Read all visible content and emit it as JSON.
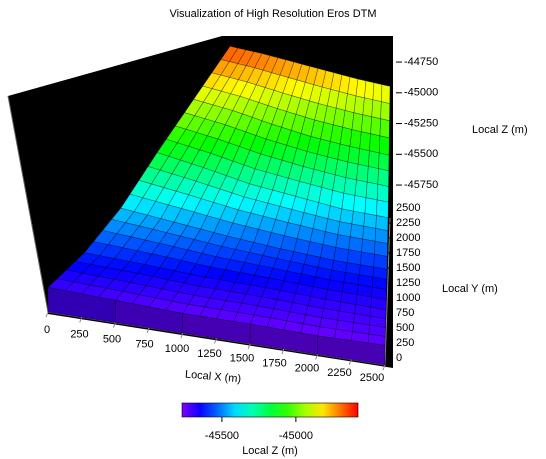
{
  "chart_data": {
    "type": "surface",
    "title": "Visualization of High Resolution Eros DTM",
    "x_label": "Local X (m)",
    "y_label": "Local Y (m)",
    "z_label": "Local Z (m)",
    "colorbar_label": "Local Z (m)",
    "x": [
      0,
      500,
      1000,
      1500,
      2000,
      2500
    ],
    "y": [
      0,
      500,
      1000,
      1500,
      2000,
      2500
    ],
    "z": [
      [
        -45700,
        -45720,
        -45740,
        -45740,
        -45750,
        -45740
      ],
      [
        -45600,
        -45620,
        -45650,
        -45660,
        -45680,
        -45690
      ],
      [
        -45420,
        -45470,
        -45520,
        -45560,
        -45590,
        -45600
      ],
      [
        -45150,
        -45220,
        -45300,
        -45350,
        -45400,
        -45420
      ],
      [
        -44900,
        -44950,
        -45020,
        -45080,
        -45120,
        -45150
      ],
      [
        -44650,
        -44680,
        -44720,
        -44760,
        -44800,
        -44830
      ]
    ],
    "xlim": [
      0,
      2500
    ],
    "ylim": [
      0,
      2500
    ],
    "zlim": [
      -45900,
      -44650
    ],
    "xticks": [
      0,
      250,
      500,
      750,
      1000,
      1250,
      1500,
      1750,
      2000,
      2250,
      2500
    ],
    "yticks": [
      0,
      250,
      500,
      750,
      1000,
      1250,
      1500,
      1750,
      2000,
      2250,
      2500
    ],
    "zticks": [
      -45750,
      -45500,
      -45250,
      -45000,
      -44750
    ],
    "clim": [
      -45770,
      -44580
    ],
    "cticks": [
      -45500,
      -45000
    ]
  }
}
